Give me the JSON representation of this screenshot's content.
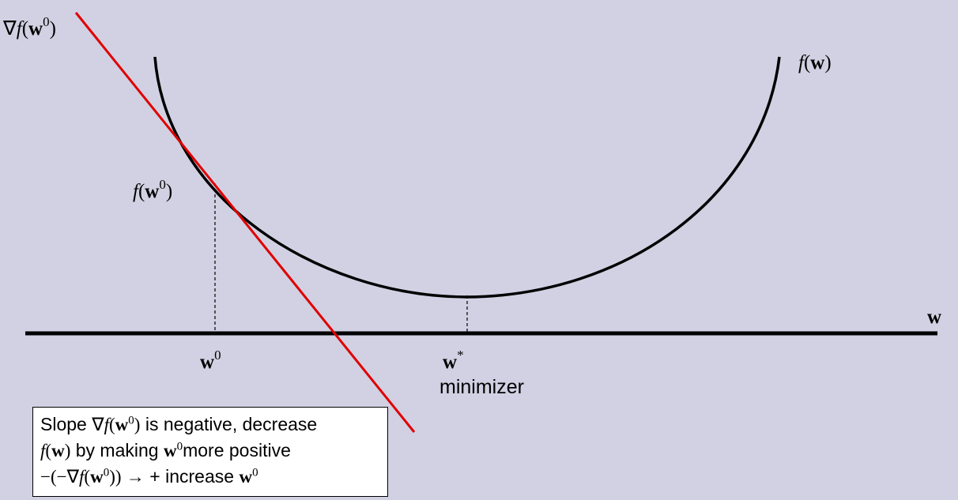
{
  "labels": {
    "gradient_label": {
      "prefix": "∇",
      "f": "f",
      "open": "(",
      "w": "w",
      "sup": "0",
      "close": ")"
    },
    "function_label": {
      "f": "f",
      "open": "(",
      "w": "w",
      "close": ")"
    },
    "point_label": {
      "f": "f",
      "open": "(",
      "w": "w",
      "sup": "0",
      "close": ")"
    },
    "axis_label": "w",
    "w0_tick": {
      "w": "w",
      "sup": "0"
    },
    "wstar_tick": {
      "w": "w",
      "sup": "*"
    },
    "minimizer": "minimizer"
  },
  "note": {
    "line1": {
      "a": "Slope ",
      "nabla": "∇",
      "f": "f",
      "open": "(",
      "w": "w",
      "sup": "0",
      "close": ")",
      "b": " is negative, decrease"
    },
    "line2": {
      "f": "f",
      "open": "(",
      "w": "w",
      "close": ")",
      "a": " by making ",
      "w2": "w",
      "sup": "0",
      "b": "more positive"
    },
    "line3": {
      "a": "−(−∇",
      "f": "f",
      "open": "(",
      "w": "w",
      "sup": "0",
      "close": "))",
      "arrow": " → + increase ",
      "w2": "w",
      "sup2": "0"
    }
  },
  "colors": {
    "background": "#d1d1e3",
    "curve": "#000000",
    "tangent": "#e00000",
    "box": "#ffffff"
  }
}
